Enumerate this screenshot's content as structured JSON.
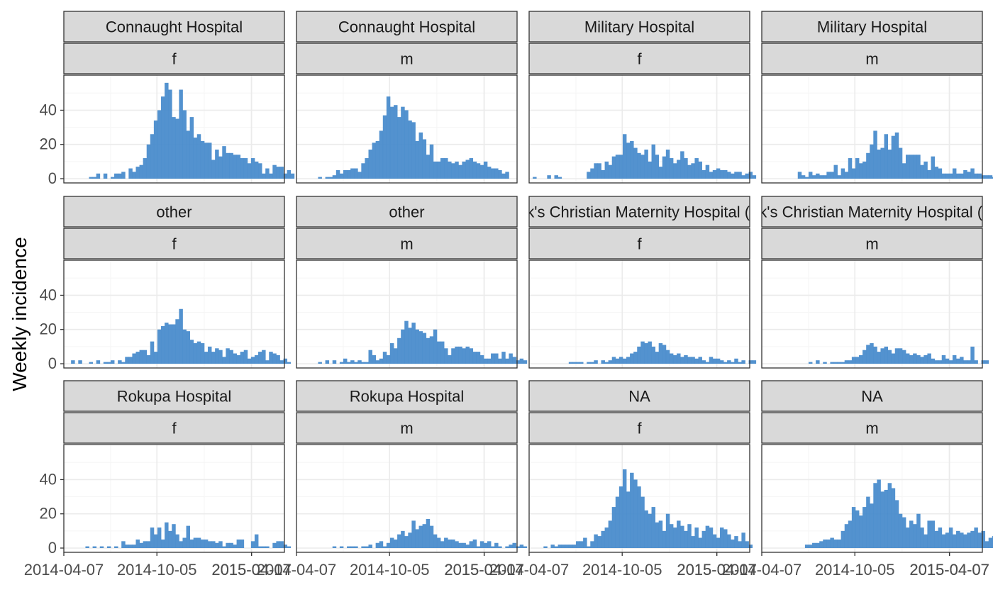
{
  "chart_data": {
    "type": "bar",
    "title": "",
    "xlabel": "",
    "ylabel": "Weekly incidence",
    "x_unit": "week",
    "ylim": [
      0,
      58
    ],
    "yticks": [
      0,
      20,
      40
    ],
    "x_ticks": [
      "2014-04-07",
      "2014-10-05",
      "2015-04-07",
      "2015-04-07"
    ],
    "x_tick_labels": [
      "2014-04-07",
      "2014-10-05",
      "2015-04-07",
      "2015-04-07"
    ],
    "x_range": [
      "2014-04-07",
      "2015-06-10"
    ],
    "grid": true,
    "bar_color": "#4a8ccc",
    "colors": {
      "panel_border": "#333333",
      "strip_fill": "#d9d9d9",
      "grid_major": "#ebebeb",
      "grid_minor": "#f5f5f5",
      "axis_text": "#4d4d4d"
    },
    "facet_rows": [
      "Connaught Hospital",
      "Military Hospital",
      "other",
      "St. Mark's Christian Maternity Hospital (SMMH)",
      "Rokupa Hospital",
      "NA"
    ],
    "facet_cols": [
      "f",
      "m"
    ],
    "panels": [
      {
        "hospital": "Connaught Hospital",
        "gender": "f",
        "start_week": "2014-04-28",
        "values": [
          0,
          0,
          0,
          0,
          1,
          1,
          3,
          0,
          3,
          0,
          1,
          3,
          3,
          4,
          0,
          6,
          4,
          7,
          8,
          12,
          20,
          26,
          34,
          40,
          48,
          56,
          52,
          36,
          35,
          52,
          40,
          28,
          36,
          24,
          26,
          22,
          21,
          21,
          11,
          17,
          13,
          19,
          15,
          15,
          14,
          14,
          12,
          12,
          9,
          12,
          10,
          9,
          3,
          6,
          3,
          8,
          7,
          7,
          3,
          5,
          3
        ]
      },
      {
        "hospital": "Connaught Hospital",
        "gender": "m",
        "start_week": "2014-04-28",
        "values": [
          0,
          0,
          0,
          1,
          0,
          1,
          1,
          2,
          5,
          3,
          5,
          5,
          6,
          6,
          4,
          9,
          12,
          17,
          21,
          22,
          28,
          37,
          48,
          42,
          43,
          36,
          42,
          40,
          34,
          33,
          22,
          27,
          23,
          14,
          20,
          10,
          10,
          12,
          12,
          10,
          9,
          10,
          8,
          10,
          11,
          12,
          10,
          9,
          8,
          10,
          7,
          6,
          6,
          5,
          3,
          4
        ]
      },
      {
        "hospital": "Military Hospital",
        "gender": "f",
        "start_week": "2014-04-14",
        "values": [
          1,
          0,
          0,
          0,
          2,
          0,
          2,
          1,
          0,
          0,
          0,
          0,
          0,
          0,
          0,
          4,
          6,
          9,
          9,
          5,
          10,
          8,
          13,
          14,
          14,
          26,
          21,
          22,
          18,
          15,
          14,
          17,
          10,
          20,
          14,
          7,
          13,
          17,
          12,
          9,
          11,
          16,
          12,
          8,
          9,
          12,
          10,
          5,
          8,
          4,
          5,
          6,
          5,
          5,
          4,
          3,
          4,
          4,
          2,
          3,
          4,
          2
        ]
      },
      {
        "hospital": "Military Hospital",
        "gender": "m",
        "start_week": "2014-04-21",
        "values": [
          0,
          0,
          0,
          0,
          0,
          0,
          0,
          0,
          4,
          2,
          1,
          4,
          2,
          3,
          2,
          2,
          4,
          4,
          8,
          2,
          6,
          4,
          12,
          6,
          12,
          9,
          10,
          15,
          20,
          28,
          17,
          18,
          26,
          17,
          25,
          27,
          18,
          9,
          14,
          14,
          14,
          14,
          8,
          10,
          5,
          13,
          7,
          6,
          3,
          3,
          3,
          6,
          3,
          3,
          5,
          4,
          6,
          3,
          3,
          2,
          2,
          2,
          1
        ]
      },
      {
        "hospital": "other",
        "gender": "f",
        "start_week": "2014-04-21",
        "values": [
          2,
          0,
          2,
          0,
          0,
          1,
          0,
          2,
          0,
          1,
          1,
          2,
          0,
          2,
          1,
          4,
          4,
          6,
          7,
          8,
          8,
          5,
          13,
          7,
          20,
          22,
          24,
          23,
          23,
          26,
          32,
          20,
          19,
          14,
          12,
          13,
          12,
          7,
          10,
          7,
          9,
          8,
          4,
          9,
          8,
          6,
          5,
          7,
          8,
          3,
          4,
          5,
          7,
          8,
          2,
          7,
          6,
          5,
          2,
          3,
          1
        ]
      },
      {
        "hospital": "other",
        "gender": "m",
        "start_week": "2014-04-21",
        "values": [
          0,
          0,
          0,
          0,
          1,
          0,
          2,
          0,
          2,
          0,
          1,
          3,
          1,
          2,
          1,
          2,
          1,
          1,
          8,
          5,
          2,
          3,
          7,
          5,
          12,
          9,
          15,
          20,
          25,
          21,
          24,
          20,
          19,
          18,
          15,
          16,
          20,
          13,
          13,
          9,
          5,
          9,
          10,
          10,
          9,
          10,
          9,
          7,
          7,
          5,
          3,
          3,
          6,
          6,
          3,
          7,
          3,
          6,
          4,
          2,
          3,
          2
        ]
      },
      {
        "hospital": "St. Mark's Christian Maternity Hospital (SMMH)",
        "gender": "f",
        "start_week": "2014-04-21",
        "values": [
          0,
          0,
          0,
          0,
          0,
          0,
          0,
          0,
          0,
          1,
          1,
          1,
          1,
          0,
          1,
          1,
          2,
          0,
          2,
          1,
          2,
          4,
          3,
          4,
          3,
          4,
          6,
          7,
          10,
          13,
          12,
          13,
          10,
          7,
          12,
          11,
          8,
          6,
          5,
          6,
          4,
          5,
          4,
          4,
          3,
          4,
          2,
          1,
          4,
          3,
          3,
          2,
          1,
          2,
          1,
          3,
          1,
          2,
          0,
          2,
          2
        ]
      },
      {
        "hospital": "St. Mark's Christian Maternity Hospital (SMMH)",
        "gender": "m",
        "start_week": "2014-04-21",
        "values": [
          0,
          0,
          0,
          0,
          0,
          0,
          0,
          0,
          0,
          0,
          0,
          1,
          0,
          2,
          0,
          1,
          0,
          1,
          1,
          1,
          1,
          2,
          2,
          4,
          4,
          5,
          8,
          11,
          12,
          10,
          7,
          9,
          10,
          8,
          6,
          9,
          9,
          8,
          6,
          5,
          6,
          5,
          4,
          5,
          6,
          3,
          2,
          2,
          5,
          3,
          2,
          5,
          3,
          4,
          2,
          2,
          10,
          2,
          0,
          2,
          2
        ]
      },
      {
        "hospital": "Rokupa Hospital",
        "gender": "f",
        "start_week": "2014-04-21",
        "values": [
          0,
          0,
          0,
          0,
          1,
          0,
          1,
          0,
          1,
          0,
          1,
          0,
          1,
          0,
          4,
          2,
          2,
          2,
          5,
          3,
          4,
          4,
          12,
          8,
          12,
          5,
          15,
          10,
          14,
          8,
          4,
          6,
          13,
          5,
          6,
          6,
          5,
          5,
          4,
          4,
          3,
          4,
          1,
          3,
          3,
          2,
          5,
          5,
          0,
          0,
          4,
          8,
          1,
          1,
          1,
          0,
          3,
          4,
          4,
          2,
          1
        ]
      },
      {
        "hospital": "Rokupa Hospital",
        "gender": "m",
        "start_week": "2014-04-21",
        "values": [
          0,
          0,
          0,
          0,
          0,
          0,
          0,
          0,
          1,
          0,
          1,
          0,
          1,
          1,
          1,
          0,
          1,
          1,
          2,
          0,
          3,
          4,
          1,
          3,
          6,
          5,
          8,
          10,
          7,
          9,
          16,
          11,
          13,
          14,
          17,
          13,
          8,
          6,
          4,
          6,
          5,
          5,
          4,
          3,
          3,
          2,
          4,
          5,
          1,
          4,
          3,
          4,
          1,
          3,
          1,
          0,
          1,
          2,
          3,
          1,
          2,
          1
        ]
      },
      {
        "hospital": "NA",
        "gender": "f",
        "start_week": "2014-04-21",
        "values": [
          0,
          0,
          1,
          0,
          2,
          1,
          2,
          2,
          2,
          2,
          2,
          4,
          4,
          6,
          1,
          4,
          8,
          7,
          10,
          12,
          16,
          24,
          30,
          36,
          46,
          33,
          44,
          40,
          36,
          30,
          22,
          20,
          24,
          15,
          16,
          10,
          20,
          14,
          12,
          16,
          13,
          10,
          14,
          7,
          12,
          6,
          10,
          13,
          12,
          8,
          6,
          12,
          11,
          8,
          5,
          7,
          4,
          9,
          4,
          2
        ]
      },
      {
        "hospital": "NA",
        "gender": "m",
        "start_week": "2014-04-21",
        "values": [
          0,
          0,
          0,
          0,
          0,
          0,
          0,
          0,
          0,
          0,
          2,
          2,
          3,
          3,
          4,
          5,
          5,
          6,
          5,
          5,
          10,
          14,
          16,
          24,
          22,
          19,
          24,
          30,
          26,
          38,
          40,
          33,
          34,
          38,
          35,
          28,
          20,
          18,
          12,
          16,
          14,
          20,
          12,
          8,
          16,
          16,
          10,
          12,
          8,
          9,
          12,
          8,
          10,
          9,
          8,
          9,
          10,
          12,
          9,
          10,
          4,
          6,
          7,
          7,
          2,
          9,
          2
        ]
      }
    ]
  }
}
